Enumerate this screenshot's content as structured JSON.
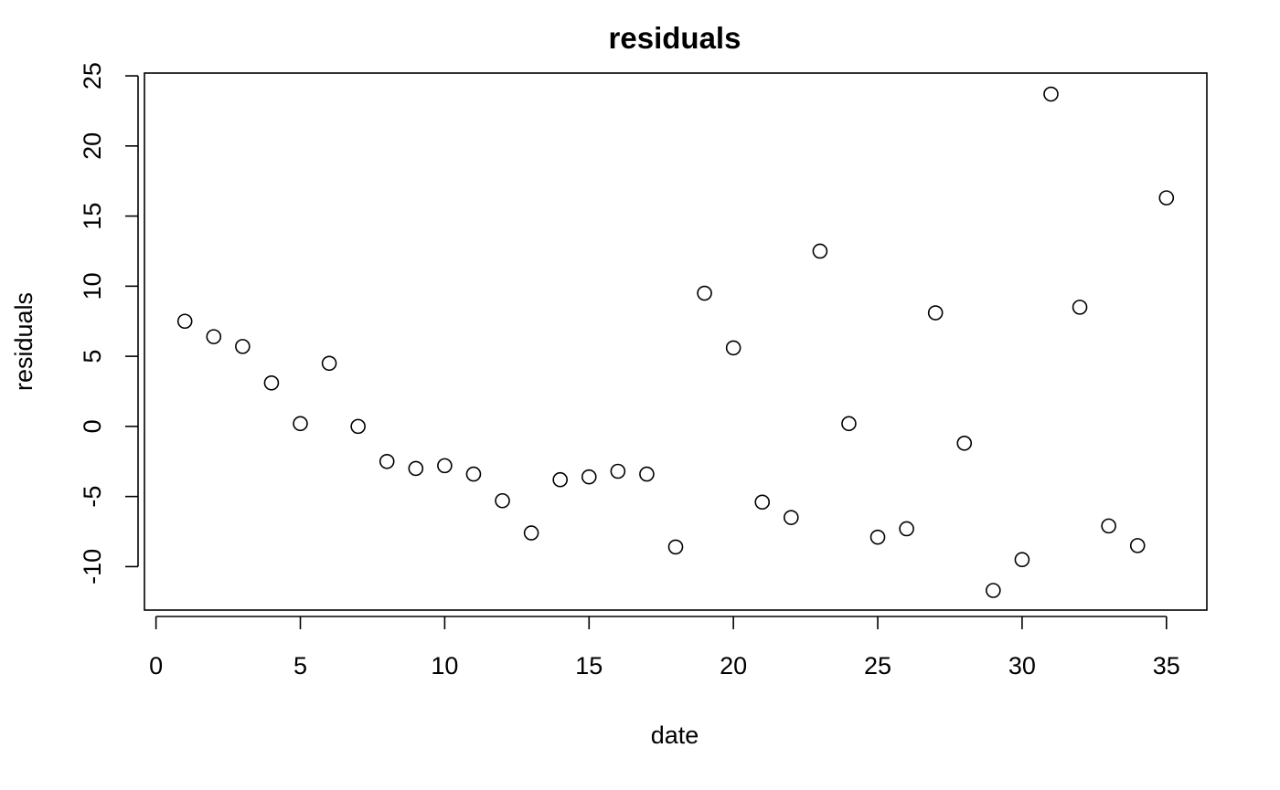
{
  "chart_data": {
    "type": "scatter",
    "title": "residuals",
    "xlabel": "date",
    "ylabel": "residuals",
    "xlim": [
      -0.4,
      36.4
    ],
    "ylim": [
      -13.1,
      25.2
    ],
    "xticks": [
      0,
      5,
      10,
      15,
      20,
      25,
      30,
      35
    ],
    "yticks": [
      -10,
      -5,
      0,
      5,
      10,
      15,
      20,
      25
    ],
    "grid": false,
    "legend": "none",
    "marker": "open-circle",
    "color": "#000000",
    "x": [
      1,
      2,
      3,
      4,
      5,
      6,
      7,
      8,
      9,
      10,
      11,
      12,
      13,
      14,
      15,
      16,
      17,
      18,
      19,
      20,
      21,
      22,
      23,
      24,
      25,
      26,
      27,
      28,
      29,
      30,
      31,
      32,
      33,
      34,
      35
    ],
    "y": [
      7.5,
      6.4,
      5.7,
      3.1,
      0.2,
      4.5,
      0.0,
      -2.5,
      -3.0,
      -2.8,
      -3.4,
      -5.3,
      -7.6,
      -3.8,
      -3.6,
      -3.2,
      -3.4,
      -8.6,
      9.5,
      5.6,
      -5.4,
      -6.5,
      12.5,
      0.2,
      -7.9,
      -7.3,
      8.1,
      -1.2,
      -11.7,
      -9.5,
      23.7,
      8.5,
      -7.1,
      -8.5,
      16.3
    ]
  }
}
